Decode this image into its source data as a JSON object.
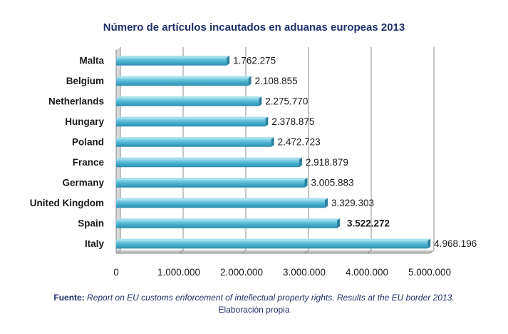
{
  "chart_data": {
    "type": "bar",
    "orientation": "horizontal",
    "title": "Número de artículos incautados en aduanas europeas 2013",
    "categories": [
      "Malta",
      "Belgium",
      "Netherlands",
      "Hungary",
      "Poland",
      "France",
      "Germany",
      "United Kingdom",
      "Spain",
      "Italy"
    ],
    "values": [
      1762275,
      2108855,
      2275770,
      2378875,
      2472723,
      2918879,
      3005883,
      3329303,
      3522272,
      4968196
    ],
    "value_labels": [
      "1.762.275",
      "2.108.855",
      "2.275.770",
      "2.378.875",
      "2.472.723",
      "2.918.879",
      "3.005.883",
      "3.329.303",
      "3.522.272",
      "4.968.196"
    ],
    "bold_label": "Spain",
    "xlim": [
      0,
      5000000
    ],
    "xticks": [
      0,
      1000000,
      2000000,
      3000000,
      4000000,
      5000000
    ],
    "xtick_labels": [
      "0",
      "1.000.000",
      "2.000.000",
      "3.000.000",
      "4.000.000",
      "5.000.000"
    ],
    "grid": "vertical",
    "bar_color": "#4fb3d1"
  },
  "source": {
    "label": "Fuente:",
    "text": "Report on EU customs enforcement of intellectual property rights. Results at the EU border 2013.",
    "note": "Elaboración propia"
  }
}
